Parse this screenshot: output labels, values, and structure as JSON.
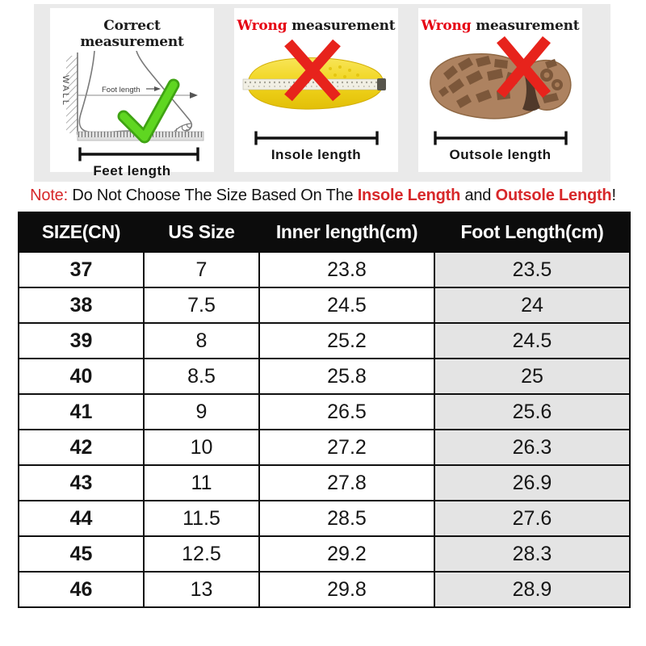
{
  "panels": [
    {
      "title_prefix": "Correct",
      "title_rest": " measurement",
      "wall_label": "WALL",
      "foot_length_label": "Foot length",
      "bracket_label": "Feet length"
    },
    {
      "title_prefix": "Wrong",
      "title_rest": " measurement",
      "bracket_label": "Insole length"
    },
    {
      "title_prefix": "Wrong",
      "title_rest": " measurement",
      "bracket_label": "Outsole length"
    }
  ],
  "note": {
    "prefix": "Note:",
    "body": " Do Not Choose The Size Based On The ",
    "highlight1": "Insole Length",
    "conjunction": " and ",
    "highlight2": "Outsole Length",
    "suffix": "!"
  },
  "table": {
    "headers": [
      "SIZE(CN)",
      "US Size",
      "Inner length(cm)",
      "Foot Length(cm)"
    ],
    "rows": [
      [
        "37",
        "7",
        "23.8",
        "23.5"
      ],
      [
        "38",
        "7.5",
        "24.5",
        "24"
      ],
      [
        "39",
        "8",
        "25.2",
        "24.5"
      ],
      [
        "40",
        "8.5",
        "25.8",
        "25"
      ],
      [
        "41",
        "9",
        "26.5",
        "25.6"
      ],
      [
        "42",
        "10",
        "27.2",
        "26.3"
      ],
      [
        "43",
        "11",
        "27.8",
        "26.9"
      ],
      [
        "44",
        "11.5",
        "28.5",
        "27.6"
      ],
      [
        "45",
        "12.5",
        "29.2",
        "28.3"
      ],
      [
        "46",
        "13",
        "29.8",
        "28.9"
      ]
    ]
  },
  "colors": {
    "band_bg": "#eaeaea",
    "header_bg": "#0c0c0c",
    "last_col_bg": "#e4e4e4",
    "wrong_red": "#e60012",
    "note_red": "#d7282a",
    "x_red": "#e7231c",
    "check_green": "#5fd621",
    "insole_yellow": "#f0d41c",
    "outsole_brown": "#ad8260"
  }
}
